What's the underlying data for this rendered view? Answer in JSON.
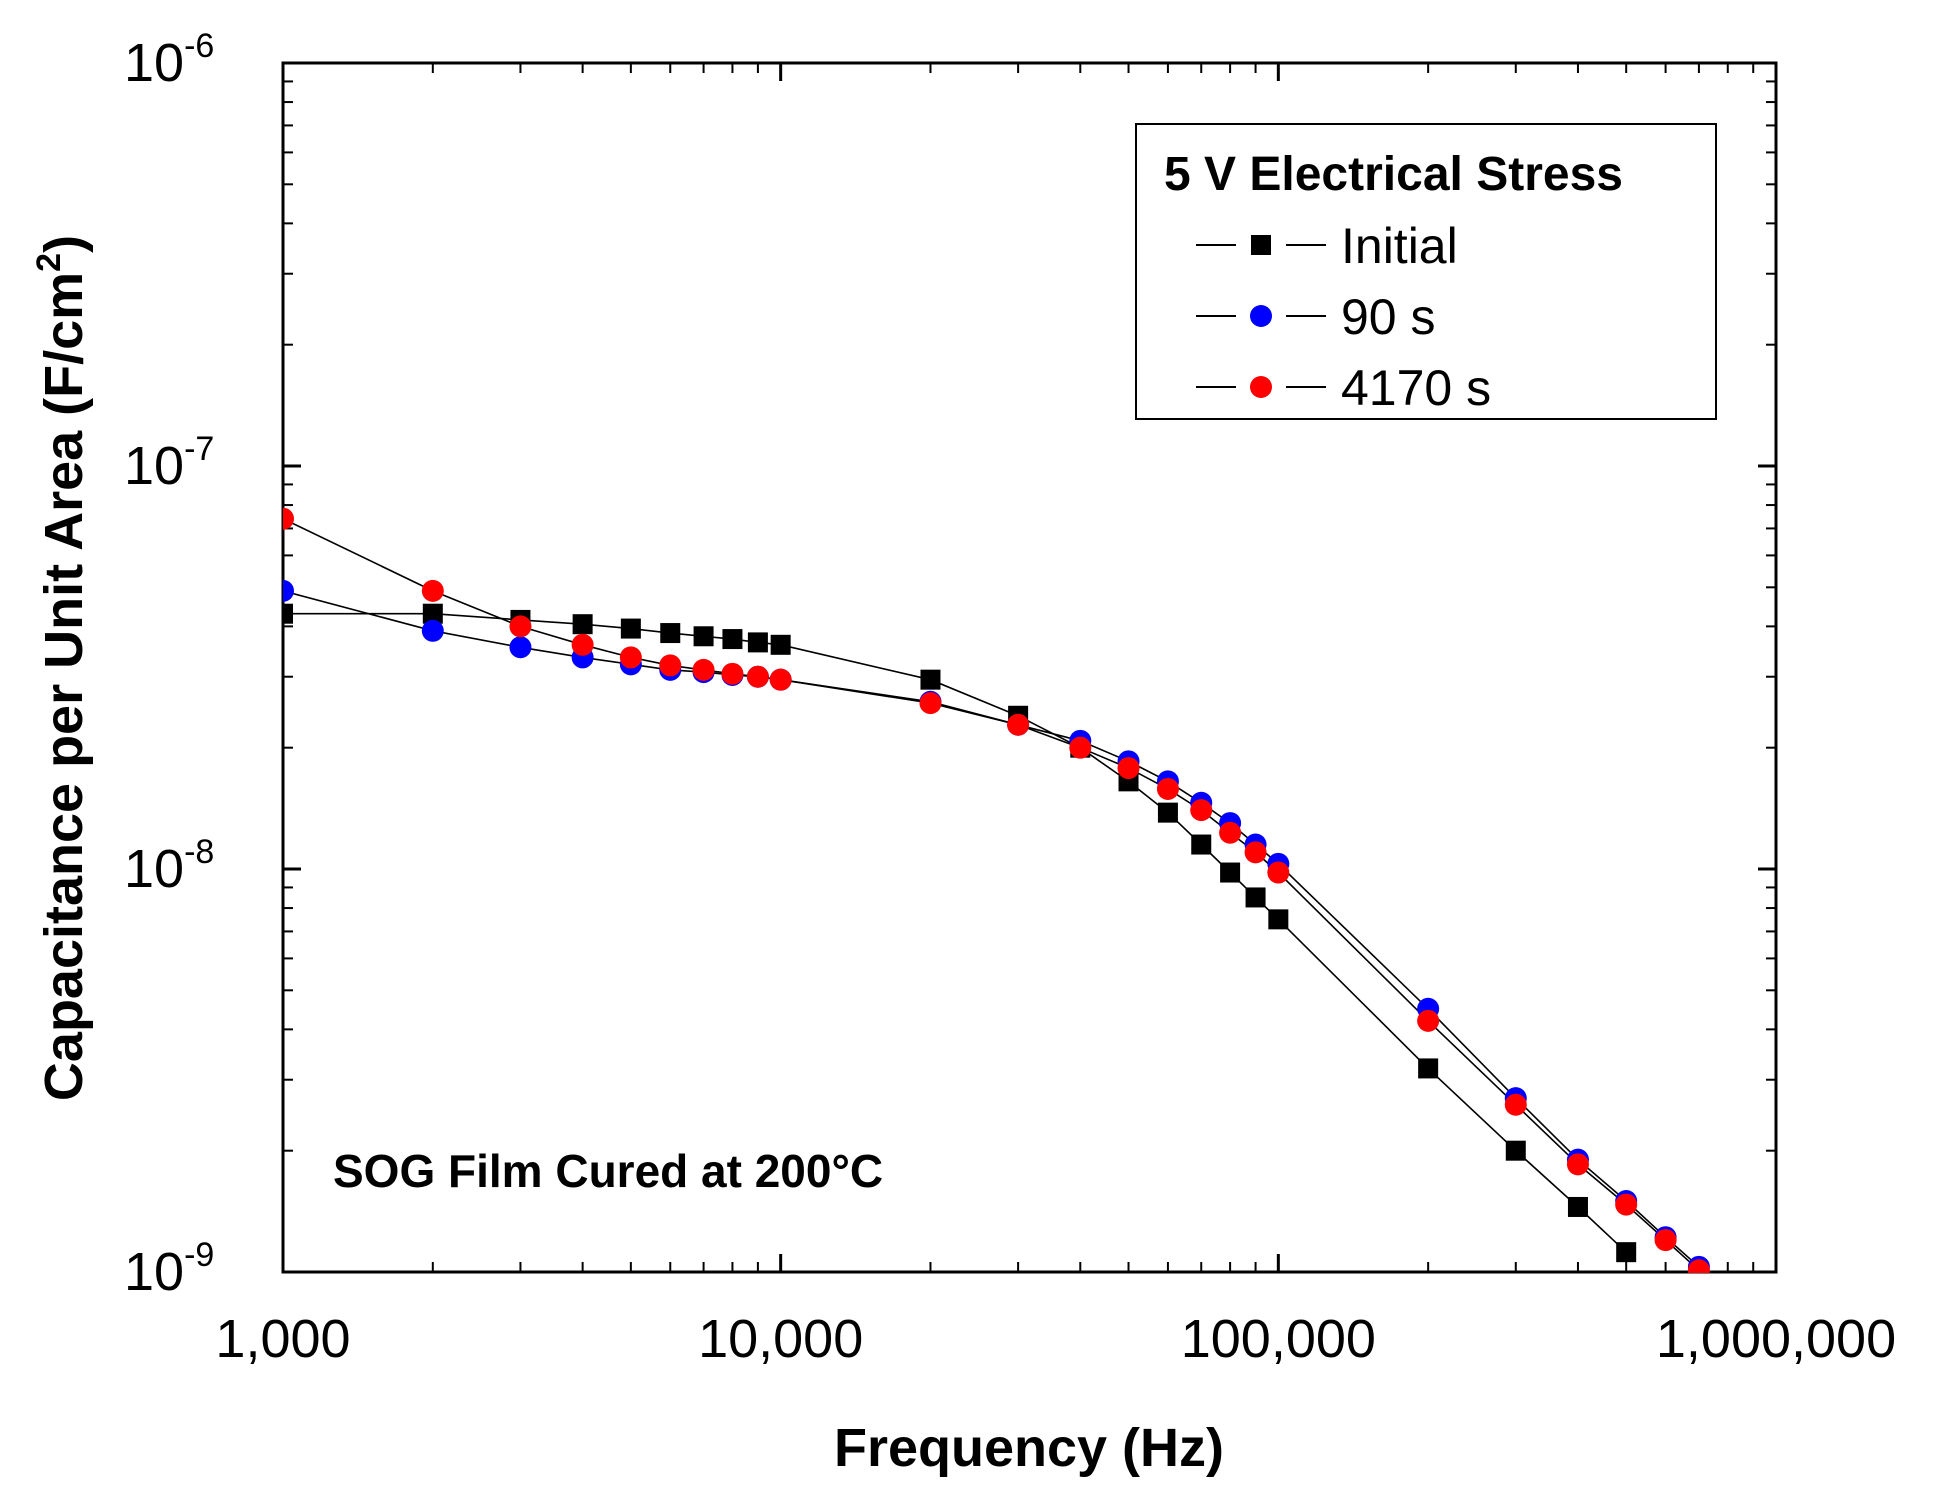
{
  "chart_data": {
    "type": "scatter",
    "xlabel": "Frequency (Hz)",
    "ylabel": "Capacitance per Unit Area (F/cm",
    "ylabel_sup": "2",
    "ylabel_tail": ")",
    "xscale": "log",
    "yscale": "log",
    "xlim": [
      1000,
      1000000
    ],
    "ylim": [
      1e-09,
      1e-06
    ],
    "x_ticks": [
      {
        "value": 1000,
        "label": "1,000"
      },
      {
        "value": 10000,
        "label": "10,000"
      },
      {
        "value": 100000,
        "label": "100,000"
      },
      {
        "value": 1000000,
        "label": "1,000,000"
      }
    ],
    "y_ticks": [
      {
        "value": 1e-09,
        "base": "10",
        "exp": "-9"
      },
      {
        "value": 1e-08,
        "base": "10",
        "exp": "-8"
      },
      {
        "value": 1e-07,
        "base": "10",
        "exp": "-7"
      },
      {
        "value": 1e-06,
        "base": "10",
        "exp": "-6"
      }
    ],
    "legend": {
      "title": "5 V Electrical Stress",
      "position": "top-right"
    },
    "annotation": "SOG Film Cured at 200°C",
    "series": [
      {
        "name": "Initial",
        "marker": "square",
        "color": "#000000",
        "x": [
          1000,
          2000,
          3000,
          4000,
          5000,
          6000,
          7000,
          8000,
          9000,
          10000,
          20000,
          30000,
          40000,
          50000,
          60000,
          70000,
          80000,
          90000,
          100000,
          200000,
          300000,
          400000,
          500000
        ],
        "y": [
          4.3e-08,
          4.3e-08,
          4.15e-08,
          4.05e-08,
          3.95e-08,
          3.85e-08,
          3.78e-08,
          3.72e-08,
          3.65e-08,
          3.6e-08,
          2.95e-08,
          2.4e-08,
          2e-08,
          1.65e-08,
          1.38e-08,
          1.15e-08,
          9.8e-09,
          8.5e-09,
          7.5e-09,
          3.2e-09,
          2e-09,
          1.45e-09,
          1.12e-09
        ]
      },
      {
        "name": "90 s",
        "marker": "circle",
        "color": "#0000ff",
        "x": [
          1000,
          2000,
          3000,
          4000,
          5000,
          6000,
          7000,
          8000,
          9000,
          10000,
          20000,
          30000,
          40000,
          50000,
          60000,
          70000,
          80000,
          90000,
          100000,
          200000,
          300000,
          400000,
          500000,
          600000,
          700000
        ],
        "y": [
          4.9e-08,
          3.9e-08,
          3.55e-08,
          3.35e-08,
          3.22e-08,
          3.12e-08,
          3.08e-08,
          3.03e-08,
          3e-08,
          2.95e-08,
          2.6e-08,
          2.28e-08,
          2.08e-08,
          1.85e-08,
          1.65e-08,
          1.46e-08,
          1.3e-08,
          1.15e-08,
          1.03e-08,
          4.5e-09,
          2.7e-09,
          1.9e-09,
          1.5e-09,
          1.22e-09,
          1.03e-09
        ]
      },
      {
        "name": "4170 s",
        "marker": "circle",
        "color": "#ff0000",
        "x": [
          1000,
          2000,
          3000,
          4000,
          5000,
          6000,
          7000,
          8000,
          9000,
          10000,
          20000,
          30000,
          40000,
          50000,
          60000,
          70000,
          80000,
          90000,
          100000,
          200000,
          300000,
          400000,
          500000,
          600000,
          700000
        ],
        "y": [
          7.4e-08,
          4.9e-08,
          4e-08,
          3.6e-08,
          3.35e-08,
          3.2e-08,
          3.12e-08,
          3.05e-08,
          3e-08,
          2.95e-08,
          2.58e-08,
          2.28e-08,
          2e-08,
          1.78e-08,
          1.58e-08,
          1.4e-08,
          1.23e-08,
          1.1e-08,
          9.8e-09,
          4.2e-09,
          2.6e-09,
          1.85e-09,
          1.47e-09,
          1.2e-09,
          1.01e-09
        ]
      }
    ]
  }
}
